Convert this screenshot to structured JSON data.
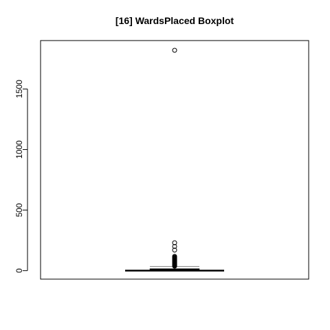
{
  "chart_data": {
    "type": "boxplot",
    "title": "[16] WardsPlaced Boxplot",
    "xlabel": "",
    "ylabel": "",
    "ylim": [
      -70,
      1900
    ],
    "yticks": [
      0,
      500,
      1000,
      1500
    ],
    "ytick_labels": [
      "0",
      "500",
      "1000",
      "1500"
    ],
    "box": {
      "min": 0,
      "q1": 3,
      "median": 8,
      "q3": 16,
      "max": 35,
      "whisker_low": 0,
      "whisker_high": 35
    },
    "outliers": [
      1820,
      230,
      200,
      170,
      118,
      112,
      106,
      101,
      96,
      92,
      88,
      84,
      80,
      76,
      72,
      68,
      64,
      60,
      57,
      54,
      51,
      48,
      45,
      42,
      39,
      37
    ],
    "colors": {
      "box_border": "#888888",
      "median": "#000000",
      "outlier": "#000000",
      "axis": "#000000"
    }
  }
}
